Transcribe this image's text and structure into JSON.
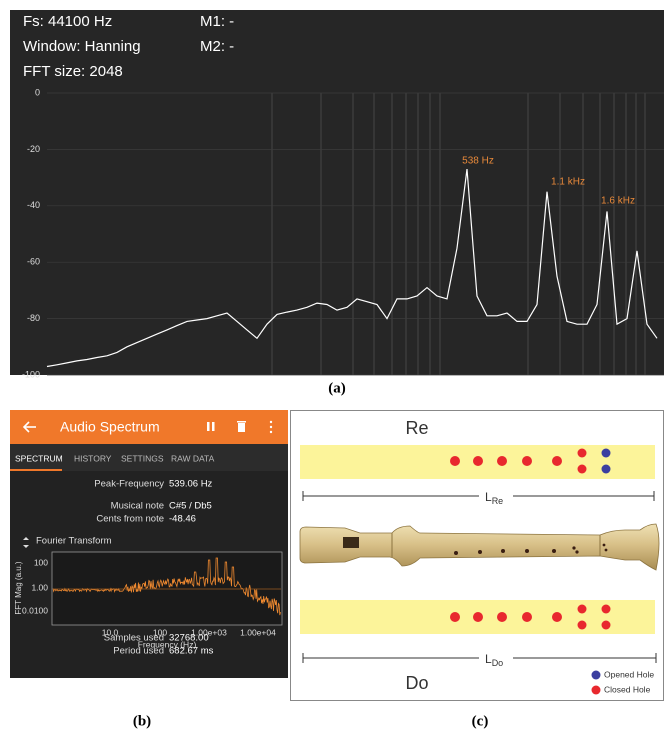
{
  "chart_data": {
    "type": "line",
    "series": [
      {
        "color": "#ffffff",
        "values": [
          -97,
          -96.4,
          -95.7,
          -95,
          -94.5,
          -93.8,
          -93.2,
          -92,
          -90,
          -88.5,
          -87,
          -85.5,
          -84,
          -82.5,
          -81,
          -80.5,
          -80,
          -79,
          -78,
          -81,
          -84,
          -87,
          -82,
          -78.5,
          -77.7,
          -77,
          -76,
          -74.5,
          -75,
          -77,
          -76,
          -73,
          -74,
          -75,
          -80,
          -73,
          -73,
          -72,
          -69,
          -72,
          -73,
          -55,
          -27,
          -72,
          -79,
          -79,
          -78,
          -81,
          -81,
          -75,
          -35,
          -65,
          -81,
          -82,
          -82,
          -75,
          -42,
          -82,
          -80,
          -56,
          -82,
          -87
        ]
      }
    ],
    "ylim": [
      -100,
      0
    ],
    "yticks": [
      0,
      -20,
      -40,
      -60,
      -80,
      -100
    ],
    "grid": true,
    "annotations": [
      "538 Hz",
      "1.1  kHz",
      "1.6  kHz"
    ],
    "annotation_color": "#e8893a"
  },
  "panel_a_info": {
    "fs": "Fs: 44100 Hz",
    "window": "Window: Hanning",
    "fft_size": "FFT size: 2048",
    "m1": "M1: -",
    "m2": "M2: -"
  },
  "panel_b": {
    "title": "Audio Spectrum",
    "tabs": [
      "SPECTRUM",
      "HISTORY",
      "SETTINGS",
      "RAW DATA"
    ],
    "rows": [
      [
        "Peak-Frequency",
        "539.06 Hz"
      ],
      [
        "Musical note",
        "C#5 / Db5"
      ],
      [
        "Cents from note",
        "-48.46"
      ]
    ],
    "plot_title": "Fourier Transform",
    "y_label": "FFT Mag (a.u.)",
    "y_ticks": [
      "100",
      "1.00",
      "0.0100"
    ],
    "x_label": "Frequency (Hz)",
    "x_ticks": [
      "10.0",
      "100",
      "1.00e+03",
      "1.00e+04"
    ],
    "footer_rows": [
      [
        "Samples used",
        "32768.00"
      ],
      [
        "Period used",
        "682.67 ms"
      ]
    ]
  },
  "panel_c": {
    "top_label": "Re",
    "bottom_label": "Do",
    "length_re": {
      "main": "L",
      "sub": "Re"
    },
    "length_do": {
      "main": "L",
      "sub": "Do"
    },
    "legend": [
      "Opened Hole",
      "Closed Hole"
    ]
  },
  "captions": [
    "(a)",
    "(b)",
    "(c)"
  ]
}
